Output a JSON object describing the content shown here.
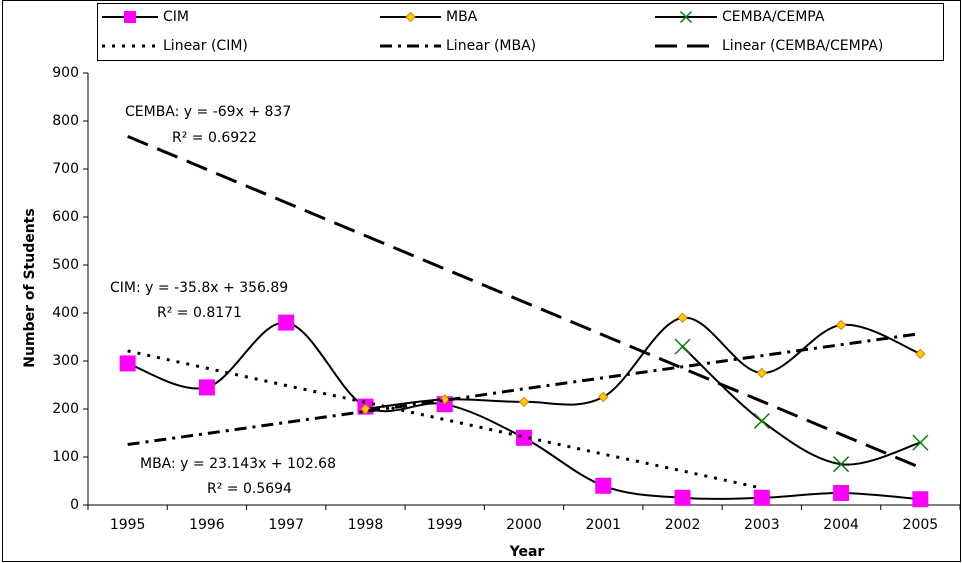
{
  "chart_data": {
    "type": "line",
    "x_label": "Year",
    "y_label": "Number of Students",
    "categories": [
      "1995",
      "1996",
      "1997",
      "1998",
      "1999",
      "2000",
      "2001",
      "2002",
      "2003",
      "2004",
      "2005"
    ],
    "ylim": [
      0,
      900
    ],
    "yticks": [
      0,
      100,
      200,
      300,
      400,
      500,
      600,
      700,
      800,
      900
    ],
    "grid": false,
    "series": [
      {
        "name": "CIM",
        "color": "#000000",
        "marker": "square",
        "marker_color": "#ff00ff",
        "smooth": true,
        "dash": "none",
        "values": [
          295,
          245,
          380,
          205,
          210,
          140,
          40,
          15,
          15,
          25,
          12
        ]
      },
      {
        "name": "MBA",
        "color": "#000000",
        "marker": "diamond",
        "marker_color": "#ffcc00",
        "smooth": true,
        "dash": "none",
        "values": [
          null,
          null,
          null,
          200,
          220,
          215,
          225,
          390,
          275,
          375,
          315
        ]
      },
      {
        "name": "CEMBA/CEMPA",
        "color": "#000000",
        "marker": "cross",
        "marker_color": "#008000",
        "smooth": true,
        "dash": "none",
        "values": [
          null,
          null,
          null,
          null,
          null,
          null,
          null,
          330,
          175,
          85,
          130
        ]
      },
      {
        "name": "Linear (CIM)",
        "color": "#000000",
        "marker": "none",
        "smooth": false,
        "dash": "3,7",
        "values": [
          321,
          285,
          249,
          214,
          178,
          142,
          106,
          71,
          35,
          null,
          null
        ]
      },
      {
        "name": "Linear (MBA)",
        "color": "#000000",
        "marker": "none",
        "smooth": false,
        "dash": "12,6,3,6",
        "values": [
          126,
          149,
          172,
          195,
          218,
          242,
          265,
          288,
          311,
          334,
          357
        ]
      },
      {
        "name": "Linear (CEMBA/CEMPA)",
        "color": "#000000",
        "marker": "none",
        "smooth": false,
        "dash": "22,10",
        "values": [
          768,
          699,
          630,
          561,
          492,
          423,
          354,
          285,
          216,
          147,
          78
        ]
      }
    ],
    "annotations": [
      "CEMBA: y = -69x + 837",
      "R² = 0.6922",
      "CIM: y = -35.8x + 356.89",
      "R² = 0.8171",
      "MBA: y = 23.143x + 102.68",
      "R² = 0.5694"
    ]
  }
}
